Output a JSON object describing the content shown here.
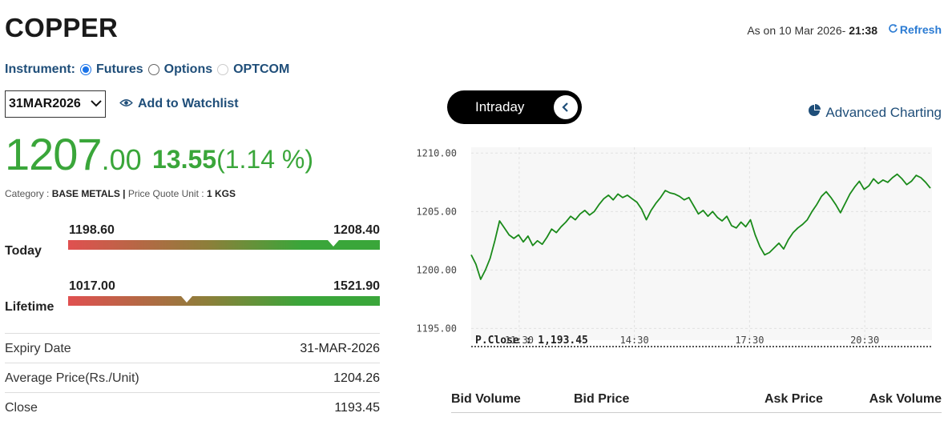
{
  "title": "COPPER",
  "as_on": {
    "prefix": "As on 10 Mar 2026-",
    "time": "21:38"
  },
  "refresh_label": "Refresh",
  "instrument": {
    "label": "Instrument:",
    "options": [
      "Futures",
      "Options",
      "OPTCOM"
    ],
    "selected": "Futures"
  },
  "expiry_select": {
    "value": "31MAR2026"
  },
  "watchlist_label": "Add to Watchlist",
  "price": {
    "int": "1207",
    "dec": ".00",
    "change": "13.55",
    "change_pct": "(1.14 %)"
  },
  "meta": {
    "category_label": "Category :",
    "category": "BASE METALS",
    "unit_label": "Price Quote Unit :",
    "unit": "1 KGS"
  },
  "today": {
    "label": "Today",
    "low": "1198.60",
    "high": "1208.40",
    "position": 0.85
  },
  "lifetime": {
    "label": "Lifetime",
    "low": "1017.00",
    "high": "1521.90",
    "position": 0.38
  },
  "details": [
    {
      "label": "Expiry Date",
      "value": "31-MAR-2026"
    },
    {
      "label": "Average Price(Rs./Unit)",
      "value": "1204.26"
    },
    {
      "label": "Close",
      "value": "1193.45"
    }
  ],
  "tab_label": "Intraday",
  "advanced_label": "Advanced Charting",
  "chart_data": {
    "type": "line",
    "yticks": [
      "1210.00",
      "1205.00",
      "1200.00",
      "1195.00"
    ],
    "ylim": [
      1194,
      1210.5
    ],
    "xticks": [
      "11:30",
      "14:30",
      "17:30",
      "20:30"
    ],
    "pclose_label": "P.Close : 1,193.45",
    "pclose": 1193.45,
    "series": [
      {
        "values": [
          1201.3,
          1200.5,
          1199.2,
          1200.0,
          1201.0,
          1202.5,
          1204.2,
          1203.6,
          1203.0,
          1202.7,
          1203.0,
          1202.4,
          1202.9,
          1202.1,
          1202.5,
          1202.2,
          1202.8,
          1203.5,
          1203.2,
          1203.7,
          1204.1,
          1204.6,
          1204.3,
          1204.8,
          1205.1,
          1204.7,
          1205.0,
          1205.6,
          1206.1,
          1206.4,
          1206.0,
          1206.5,
          1206.2,
          1206.4,
          1206.1,
          1205.8,
          1205.2,
          1204.3,
          1205.1,
          1205.7,
          1206.2,
          1206.8,
          1206.6,
          1206.5,
          1206.3,
          1206.0,
          1206.2,
          1205.5,
          1204.8,
          1205.1,
          1204.6,
          1205.0,
          1204.5,
          1204.2,
          1204.6,
          1203.8,
          1203.6,
          1204.1,
          1203.7,
          1204.3,
          1203.0,
          1202.0,
          1201.3,
          1201.5,
          1201.9,
          1202.3,
          1201.8,
          1202.6,
          1203.2,
          1203.6,
          1203.9,
          1204.3,
          1205.0,
          1205.6,
          1206.3,
          1206.7,
          1206.2,
          1205.6,
          1204.9,
          1205.7,
          1206.5,
          1207.1,
          1207.6,
          1206.9,
          1207.2,
          1207.8,
          1207.4,
          1207.7,
          1207.5,
          1207.9,
          1208.2,
          1207.8,
          1207.3,
          1207.6,
          1208.1,
          1207.9,
          1207.5,
          1207.0
        ]
      }
    ]
  },
  "book_headers": [
    "Bid Volume",
    "Bid Price",
    "Ask Price",
    "Ask Volume"
  ]
}
